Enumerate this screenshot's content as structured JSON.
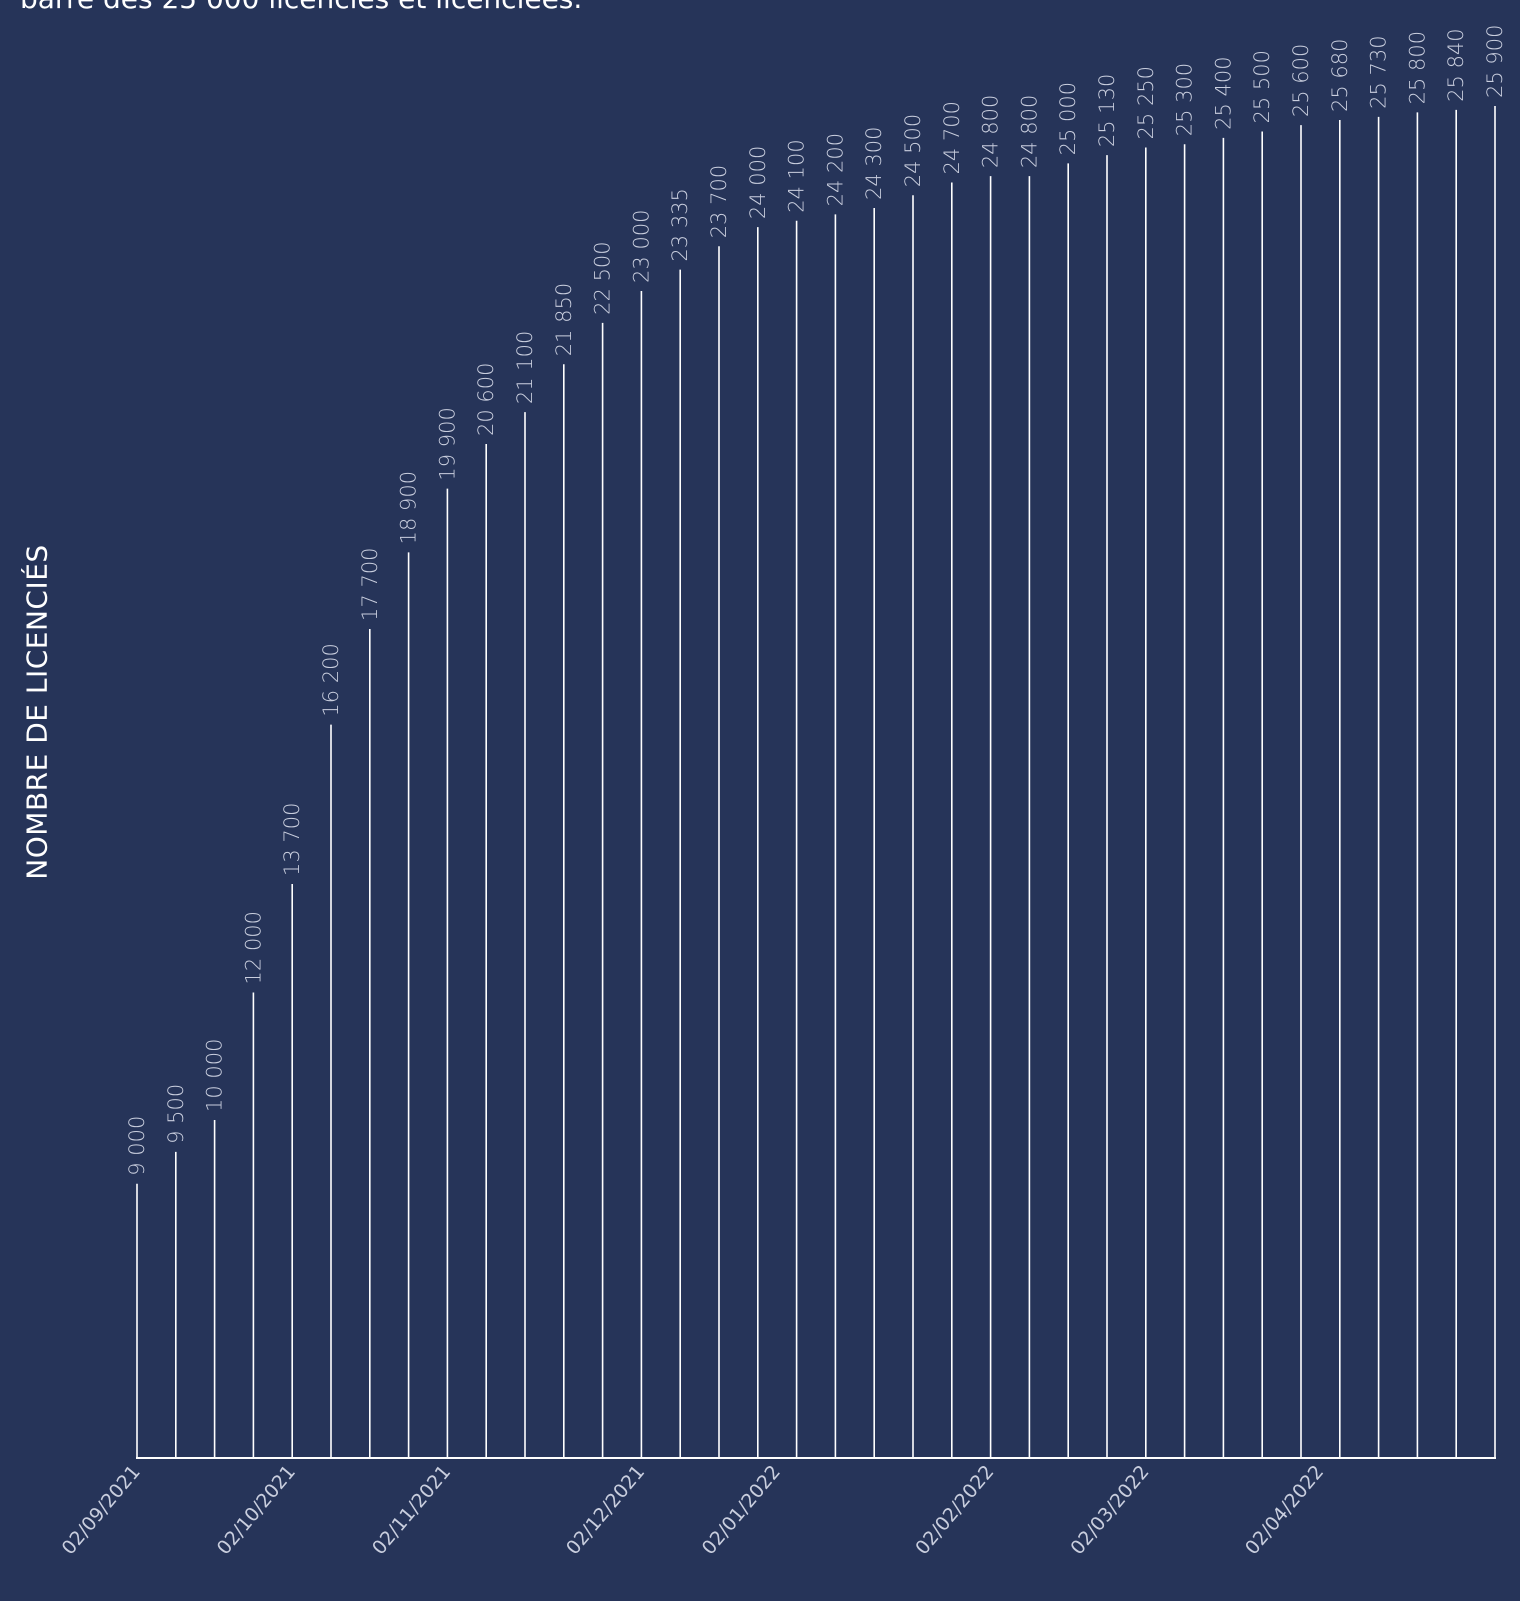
{
  "subtitle": "barre des 25 000 licenciés et licenciées.",
  "colors": {
    "background": "#263459",
    "stem": "#ffffff",
    "label": "#c9cede"
  },
  "chart_data": {
    "type": "bar",
    "style": "stem",
    "ylabel": "NOMBRE DE LICENCIÉS",
    "xlabel": "",
    "ylim": [
      0,
      26000
    ],
    "grid": false,
    "values": [
      9000,
      9500,
      10000,
      12000,
      13700,
      16200,
      17700,
      18900,
      19900,
      20600,
      21100,
      21850,
      22500,
      23000,
      23335,
      23700,
      24000,
      24100,
      24200,
      24300,
      24500,
      24700,
      24800,
      24800,
      25000,
      25130,
      25250,
      25300,
      25400,
      25500,
      25600,
      25680,
      25730,
      25800,
      25840,
      25900
    ],
    "value_labels": [
      "9 000",
      "9 500",
      "10 000",
      "12 000",
      "13 700",
      "16 200",
      "17 700",
      "18 900",
      "19 900",
      "20 600",
      "21 100",
      "21 850",
      "22 500",
      "23 000",
      "23 335",
      "23 700",
      "24 000",
      "24 100",
      "24 200",
      "24 300",
      "24 500",
      "24 700",
      "24 800",
      "24 800",
      "25 000",
      "25 130",
      "25 250",
      "25 300",
      "25 400",
      "25 500",
      "25 600",
      "25 680",
      "25 730",
      "25 800",
      "25 840",
      "25 900"
    ],
    "x_tick_labels": [
      {
        "label": "02/09/2021",
        "bar_index": 0
      },
      {
        "label": "02/10/2021",
        "bar_index": 4
      },
      {
        "label": "02/11/2021",
        "bar_index": 8
      },
      {
        "label": "02/12/2021",
        "bar_index": 13
      },
      {
        "label": "02/01/2022",
        "bar_index": 16.5
      },
      {
        "label": "02/02/2022",
        "bar_index": 22
      },
      {
        "label": "02/03/2022",
        "bar_index": 26
      },
      {
        "label": "02/04/2022",
        "bar_index": 30.5
      }
    ]
  }
}
